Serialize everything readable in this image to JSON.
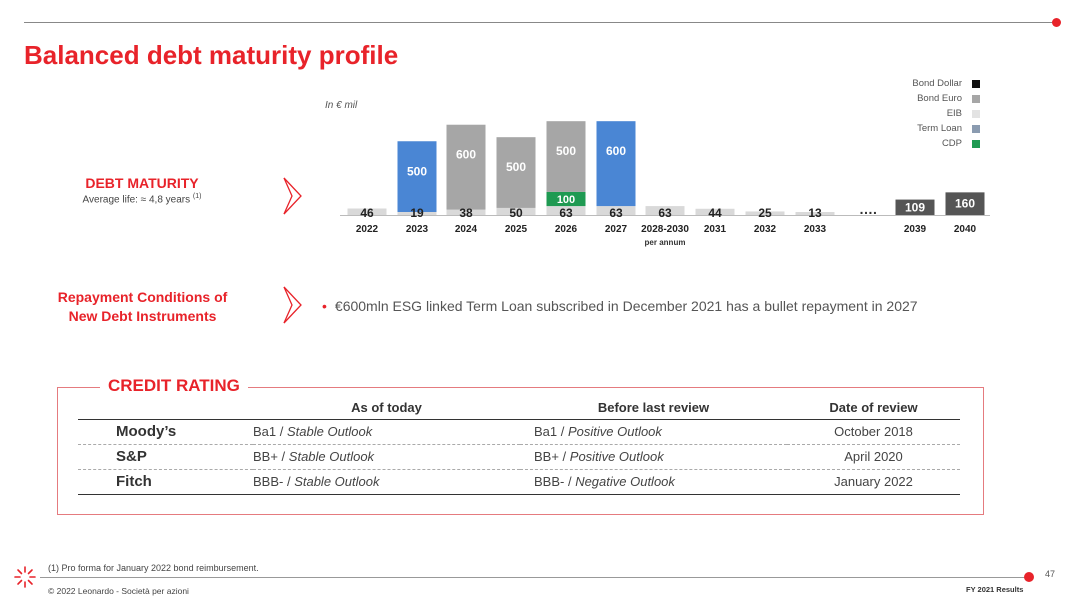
{
  "title": "Balanced debt maturity profile",
  "debt_maturity": {
    "label": "DEBT MATURITY",
    "sublabel": "Average life: ≈ 4,8 years",
    "footnote_ref": "(1)"
  },
  "repayment": {
    "label_line1": "Repayment Conditions of",
    "label_line2": "New Debt Instruments",
    "bullet": "€600mln ESG linked Term Loan subscribed in December 2021 has a bullet repayment in 2027"
  },
  "colors": {
    "accent": "#e8232a",
    "bond_dollar": "#111111",
    "bond_euro": "#a6a6a6",
    "eib": "#d9d9d9",
    "term_loan": "#4a86d4",
    "cdp": "#1f9a52",
    "long_term": "#555555"
  },
  "chart_data": {
    "type": "bar",
    "unit_note": "In € mil",
    "per_annum_note": "per annum",
    "ellipsis": "….",
    "legend": [
      {
        "name": "Bond Dollar",
        "color": "#111111"
      },
      {
        "name": "Bond Euro",
        "color": "#a6a6a6"
      },
      {
        "name": "EIB",
        "color": "#d9d9d9"
      },
      {
        "name": "Term Loan",
        "color": "#8a9bb0"
      },
      {
        "name": "CDP",
        "color": "#1f9a52"
      }
    ],
    "categories": [
      "2022",
      "2023",
      "2024",
      "2025",
      "2026",
      "2027",
      "2028-2030",
      "2031",
      "2032",
      "2033",
      "2039",
      "2040"
    ],
    "bars": [
      {
        "year": "2022",
        "stack": [
          {
            "v": 46,
            "kind": "eib"
          }
        ],
        "labels": [
          {
            "text": "46",
            "pos": "base"
          }
        ]
      },
      {
        "year": "2023",
        "stack": [
          {
            "v": 19,
            "kind": "eib"
          },
          {
            "v": 500,
            "kind": "term_loan"
          }
        ],
        "labels": [
          {
            "text": "19",
            "pos": "base"
          },
          {
            "text": "500",
            "pos": "seg1"
          }
        ]
      },
      {
        "year": "2024",
        "stack": [
          {
            "v": 38,
            "kind": "eib"
          },
          {
            "v": 600,
            "kind": "bond_euro"
          }
        ],
        "labels": [
          {
            "text": "38",
            "pos": "base"
          },
          {
            "text": "600",
            "pos": "seg1"
          }
        ]
      },
      {
        "year": "2025",
        "stack": [
          {
            "v": 50,
            "kind": "eib"
          },
          {
            "v": 500,
            "kind": "bond_euro"
          }
        ],
        "labels": [
          {
            "text": "50",
            "pos": "base"
          },
          {
            "text": "500",
            "pos": "seg1"
          }
        ]
      },
      {
        "year": "2026",
        "stack": [
          {
            "v": 63,
            "kind": "eib"
          },
          {
            "v": 100,
            "kind": "cdp"
          },
          {
            "v": 500,
            "kind": "bond_euro"
          }
        ],
        "labels": [
          {
            "text": "63",
            "pos": "base"
          },
          {
            "text": "100",
            "pos": "seg1"
          },
          {
            "text": "500",
            "pos": "seg2"
          }
        ]
      },
      {
        "year": "2027",
        "stack": [
          {
            "v": 63,
            "kind": "eib"
          },
          {
            "v": 600,
            "kind": "term_loan"
          }
        ],
        "labels": [
          {
            "text": "63",
            "pos": "base"
          },
          {
            "text": "600",
            "pos": "seg1"
          }
        ]
      },
      {
        "year": "2028-2030",
        "stack": [
          {
            "v": 63,
            "kind": "eib"
          }
        ],
        "labels": [
          {
            "text": "63",
            "pos": "base"
          }
        ]
      },
      {
        "year": "2031",
        "stack": [
          {
            "v": 44,
            "kind": "eib"
          }
        ],
        "labels": [
          {
            "text": "44",
            "pos": "base"
          }
        ]
      },
      {
        "year": "2032",
        "stack": [
          {
            "v": 25,
            "kind": "eib"
          }
        ],
        "labels": [
          {
            "text": "25",
            "pos": "base"
          }
        ]
      },
      {
        "year": "2033",
        "stack": [
          {
            "v": 13,
            "kind": "eib"
          }
        ],
        "labels": [
          {
            "text": "13",
            "pos": "base"
          }
        ]
      },
      {
        "year": "2039",
        "stack": [
          {
            "v": 109,
            "kind": "long_term"
          }
        ],
        "labels": [
          {
            "text": "109",
            "pos": "seg0"
          }
        ]
      },
      {
        "year": "2040",
        "stack": [
          {
            "v": 160,
            "kind": "long_term"
          }
        ],
        "labels": [
          {
            "text": "160",
            "pos": "seg0"
          }
        ]
      }
    ]
  },
  "credit_rating": {
    "title": "CREDIT RATING",
    "headers": [
      "",
      "As of today",
      "Before last review",
      "Date of review"
    ],
    "rows": [
      {
        "agency": "Moody’s",
        "today_grade": "Ba1",
        "today_outlook": "Stable Outlook",
        "before_grade": "Ba1",
        "before_outlook": "Positive Outlook",
        "date": "October 2018"
      },
      {
        "agency": "S&P",
        "today_grade": "BB+",
        "today_outlook": "Stable Outlook",
        "before_grade": "BB+",
        "before_outlook": "Positive Outlook",
        "date": "April 2020"
      },
      {
        "agency": "Fitch",
        "today_grade": "BBB-",
        "today_outlook": "Stable Outlook",
        "before_grade": "BBB-",
        "before_outlook": "Negative Outlook",
        "date": "January 2022"
      }
    ]
  },
  "footer": {
    "footnote": "(1) Pro forma for January 2022 bond reimbursement.",
    "copyright": "© 2022 Leonardo - Società per azioni",
    "page_number": "47",
    "results_tag": "FY 2021 Results"
  }
}
